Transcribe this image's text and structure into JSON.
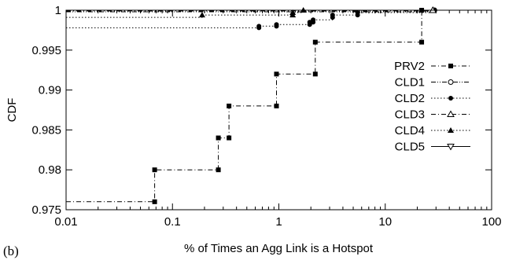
{
  "panel_label": "(b)",
  "chart_data": {
    "type": "line",
    "title": "",
    "xlabel": "% of Times an Agg Link is a Hotspot",
    "ylabel": "CDF",
    "x_scale": "log",
    "xlim": [
      0.01,
      100
    ],
    "ylim": [
      0.975,
      1.0
    ],
    "x_ticks": [
      0.01,
      0.1,
      1,
      10,
      100
    ],
    "x_tick_labels": [
      "0.01",
      "0.1",
      "1",
      "10",
      "100"
    ],
    "y_ticks": [
      0.975,
      0.98,
      0.985,
      0.99,
      0.995,
      1.0
    ],
    "y_tick_labels": [
      "0.975",
      "0.98",
      "0.985",
      "0.99",
      "0.995",
      "1"
    ],
    "grid": false,
    "legend_position": "right",
    "series": [
      {
        "name": "PRV2",
        "line_style": "dash-dot",
        "marker": "filled-square",
        "color": "#000000",
        "points": [
          [
            0.01,
            0.976
          ],
          [
            0.068,
            0.976
          ],
          [
            0.068,
            0.98
          ],
          [
            0.27,
            0.98
          ],
          [
            0.27,
            0.984
          ],
          [
            0.34,
            0.984
          ],
          [
            0.34,
            0.988
          ],
          [
            0.95,
            0.988
          ],
          [
            0.95,
            0.992
          ],
          [
            2.2,
            0.992
          ],
          [
            2.2,
            0.996
          ],
          [
            22,
            0.996
          ],
          [
            22,
            1.0
          ],
          [
            30,
            1.0
          ]
        ],
        "marker_points": [
          [
            0.068,
            0.976
          ],
          [
            0.068,
            0.98
          ],
          [
            0.27,
            0.98
          ],
          [
            0.27,
            0.984
          ],
          [
            0.34,
            0.984
          ],
          [
            0.34,
            0.988
          ],
          [
            0.95,
            0.988
          ],
          [
            0.95,
            0.992
          ],
          [
            2.2,
            0.992
          ],
          [
            2.2,
            0.996
          ],
          [
            22,
            0.996
          ],
          [
            22,
            1.0
          ]
        ]
      },
      {
        "name": "CLD1",
        "line_style": "dash-dot-dot",
        "marker": "open-circle",
        "color": "#000000",
        "points": [
          [
            0.01,
            0.9998
          ],
          [
            29,
            0.9998
          ],
          [
            29,
            1.0
          ]
        ],
        "marker_points": [
          [
            29,
            1.0
          ]
        ]
      },
      {
        "name": "CLD2",
        "line_style": "dotted",
        "marker": "filled-circle",
        "color": "#000000",
        "points": [
          [
            0.01,
            0.9978
          ],
          [
            0.65,
            0.9978
          ],
          [
            0.65,
            0.998
          ],
          [
            0.95,
            0.998
          ],
          [
            0.95,
            0.9982
          ],
          [
            1.95,
            0.9982
          ],
          [
            1.95,
            0.9985
          ],
          [
            2.1,
            0.9985
          ],
          [
            2.1,
            0.9988
          ],
          [
            3.2,
            0.9988
          ],
          [
            3.2,
            0.9991
          ],
          [
            3.2,
            0.9994
          ],
          [
            5.5,
            0.9994
          ],
          [
            5.5,
            0.9997
          ],
          [
            29,
            0.9997
          ],
          [
            29,
            1.0
          ]
        ],
        "marker_points": [
          [
            0.65,
            0.9978
          ],
          [
            0.65,
            0.998
          ],
          [
            0.95,
            0.998
          ],
          [
            0.95,
            0.9982
          ],
          [
            1.95,
            0.9982
          ],
          [
            1.95,
            0.9985
          ],
          [
            2.1,
            0.9985
          ],
          [
            2.1,
            0.9988
          ],
          [
            3.2,
            0.9991
          ],
          [
            3.2,
            0.9994
          ],
          [
            5.5,
            0.9994
          ],
          [
            5.5,
            0.9997
          ],
          [
            29,
            1.0
          ]
        ]
      },
      {
        "name": "CLD3",
        "line_style": "dash-dot",
        "marker": "open-triangle-up",
        "color": "#000000",
        "points": [
          [
            0.01,
            0.9999
          ],
          [
            28,
            0.9999
          ],
          [
            28,
            1.0
          ]
        ],
        "marker_points": [
          [
            28,
            1.0
          ]
        ]
      },
      {
        "name": "CLD4",
        "line_style": "dotted",
        "marker": "filled-triangle-up",
        "color": "#000000",
        "points": [
          [
            0.01,
            0.9991
          ],
          [
            0.19,
            0.9991
          ],
          [
            0.19,
            0.9994
          ],
          [
            1.35,
            0.9994
          ],
          [
            1.35,
            0.9997
          ],
          [
            1.7,
            0.9997
          ],
          [
            1.7,
            1.0
          ],
          [
            29,
            1.0
          ]
        ],
        "marker_points": [
          [
            0.19,
            0.9994
          ],
          [
            1.35,
            0.9994
          ],
          [
            1.35,
            0.9997
          ],
          [
            1.7,
            1.0
          ]
        ]
      },
      {
        "name": "CLD5",
        "line_style": "solid",
        "marker": "open-triangle-down",
        "color": "#000000",
        "points": [
          [
            0.01,
            1.0
          ],
          [
            100,
            1.0
          ]
        ],
        "marker_points": []
      }
    ]
  }
}
